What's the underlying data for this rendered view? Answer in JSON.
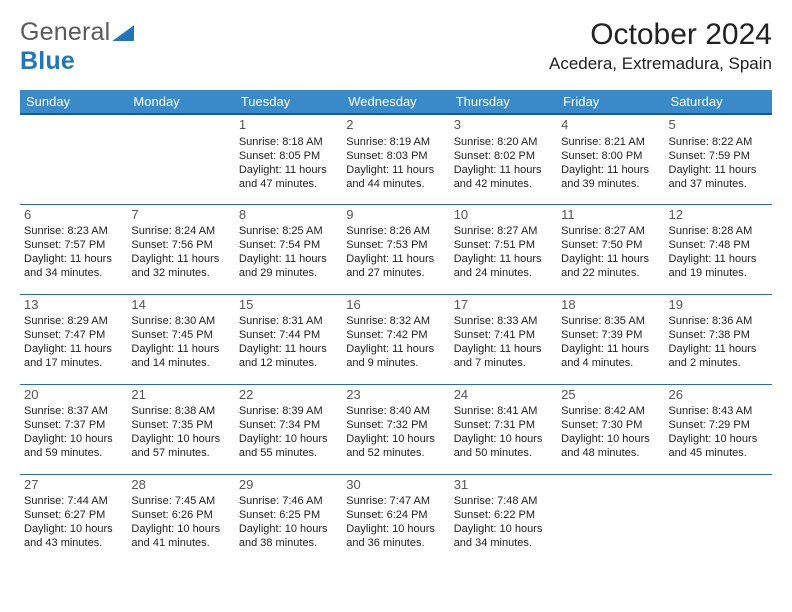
{
  "brand": {
    "name_a": "General",
    "name_b": "Blue"
  },
  "title": "October 2024",
  "location": "Acedera, Extremadura, Spain",
  "colors": {
    "header_bg": "#3a8ac9",
    "header_border": "#1b5c8a",
    "row_border": "#2b6da8",
    "brand_blue": "#2176b8",
    "brand_gray": "#5a5a5a"
  },
  "week_header": [
    "Sunday",
    "Monday",
    "Tuesday",
    "Wednesday",
    "Thursday",
    "Friday",
    "Saturday"
  ],
  "weeks": [
    [
      null,
      null,
      {
        "n": "1",
        "sr": "8:18 AM",
        "ss": "8:05 PM",
        "dl": "11 hours and 47 minutes."
      },
      {
        "n": "2",
        "sr": "8:19 AM",
        "ss": "8:03 PM",
        "dl": "11 hours and 44 minutes."
      },
      {
        "n": "3",
        "sr": "8:20 AM",
        "ss": "8:02 PM",
        "dl": "11 hours and 42 minutes."
      },
      {
        "n": "4",
        "sr": "8:21 AM",
        "ss": "8:00 PM",
        "dl": "11 hours and 39 minutes."
      },
      {
        "n": "5",
        "sr": "8:22 AM",
        "ss": "7:59 PM",
        "dl": "11 hours and 37 minutes."
      }
    ],
    [
      {
        "n": "6",
        "sr": "8:23 AM",
        "ss": "7:57 PM",
        "dl": "11 hours and 34 minutes."
      },
      {
        "n": "7",
        "sr": "8:24 AM",
        "ss": "7:56 PM",
        "dl": "11 hours and 32 minutes."
      },
      {
        "n": "8",
        "sr": "8:25 AM",
        "ss": "7:54 PM",
        "dl": "11 hours and 29 minutes."
      },
      {
        "n": "9",
        "sr": "8:26 AM",
        "ss": "7:53 PM",
        "dl": "11 hours and 27 minutes."
      },
      {
        "n": "10",
        "sr": "8:27 AM",
        "ss": "7:51 PM",
        "dl": "11 hours and 24 minutes."
      },
      {
        "n": "11",
        "sr": "8:27 AM",
        "ss": "7:50 PM",
        "dl": "11 hours and 22 minutes."
      },
      {
        "n": "12",
        "sr": "8:28 AM",
        "ss": "7:48 PM",
        "dl": "11 hours and 19 minutes."
      }
    ],
    [
      {
        "n": "13",
        "sr": "8:29 AM",
        "ss": "7:47 PM",
        "dl": "11 hours and 17 minutes."
      },
      {
        "n": "14",
        "sr": "8:30 AM",
        "ss": "7:45 PM",
        "dl": "11 hours and 14 minutes."
      },
      {
        "n": "15",
        "sr": "8:31 AM",
        "ss": "7:44 PM",
        "dl": "11 hours and 12 minutes."
      },
      {
        "n": "16",
        "sr": "8:32 AM",
        "ss": "7:42 PM",
        "dl": "11 hours and 9 minutes."
      },
      {
        "n": "17",
        "sr": "8:33 AM",
        "ss": "7:41 PM",
        "dl": "11 hours and 7 minutes."
      },
      {
        "n": "18",
        "sr": "8:35 AM",
        "ss": "7:39 PM",
        "dl": "11 hours and 4 minutes."
      },
      {
        "n": "19",
        "sr": "8:36 AM",
        "ss": "7:38 PM",
        "dl": "11 hours and 2 minutes."
      }
    ],
    [
      {
        "n": "20",
        "sr": "8:37 AM",
        "ss": "7:37 PM",
        "dl": "10 hours and 59 minutes."
      },
      {
        "n": "21",
        "sr": "8:38 AM",
        "ss": "7:35 PM",
        "dl": "10 hours and 57 minutes."
      },
      {
        "n": "22",
        "sr": "8:39 AM",
        "ss": "7:34 PM",
        "dl": "10 hours and 55 minutes."
      },
      {
        "n": "23",
        "sr": "8:40 AM",
        "ss": "7:32 PM",
        "dl": "10 hours and 52 minutes."
      },
      {
        "n": "24",
        "sr": "8:41 AM",
        "ss": "7:31 PM",
        "dl": "10 hours and 50 minutes."
      },
      {
        "n": "25",
        "sr": "8:42 AM",
        "ss": "7:30 PM",
        "dl": "10 hours and 48 minutes."
      },
      {
        "n": "26",
        "sr": "8:43 AM",
        "ss": "7:29 PM",
        "dl": "10 hours and 45 minutes."
      }
    ],
    [
      {
        "n": "27",
        "sr": "7:44 AM",
        "ss": "6:27 PM",
        "dl": "10 hours and 43 minutes."
      },
      {
        "n": "28",
        "sr": "7:45 AM",
        "ss": "6:26 PM",
        "dl": "10 hours and 41 minutes."
      },
      {
        "n": "29",
        "sr": "7:46 AM",
        "ss": "6:25 PM",
        "dl": "10 hours and 38 minutes."
      },
      {
        "n": "30",
        "sr": "7:47 AM",
        "ss": "6:24 PM",
        "dl": "10 hours and 36 minutes."
      },
      {
        "n": "31",
        "sr": "7:48 AM",
        "ss": "6:22 PM",
        "dl": "10 hours and 34 minutes."
      },
      null,
      null
    ]
  ],
  "labels": {
    "sunrise": "Sunrise:",
    "sunset": "Sunset:",
    "daylight": "Daylight:"
  }
}
